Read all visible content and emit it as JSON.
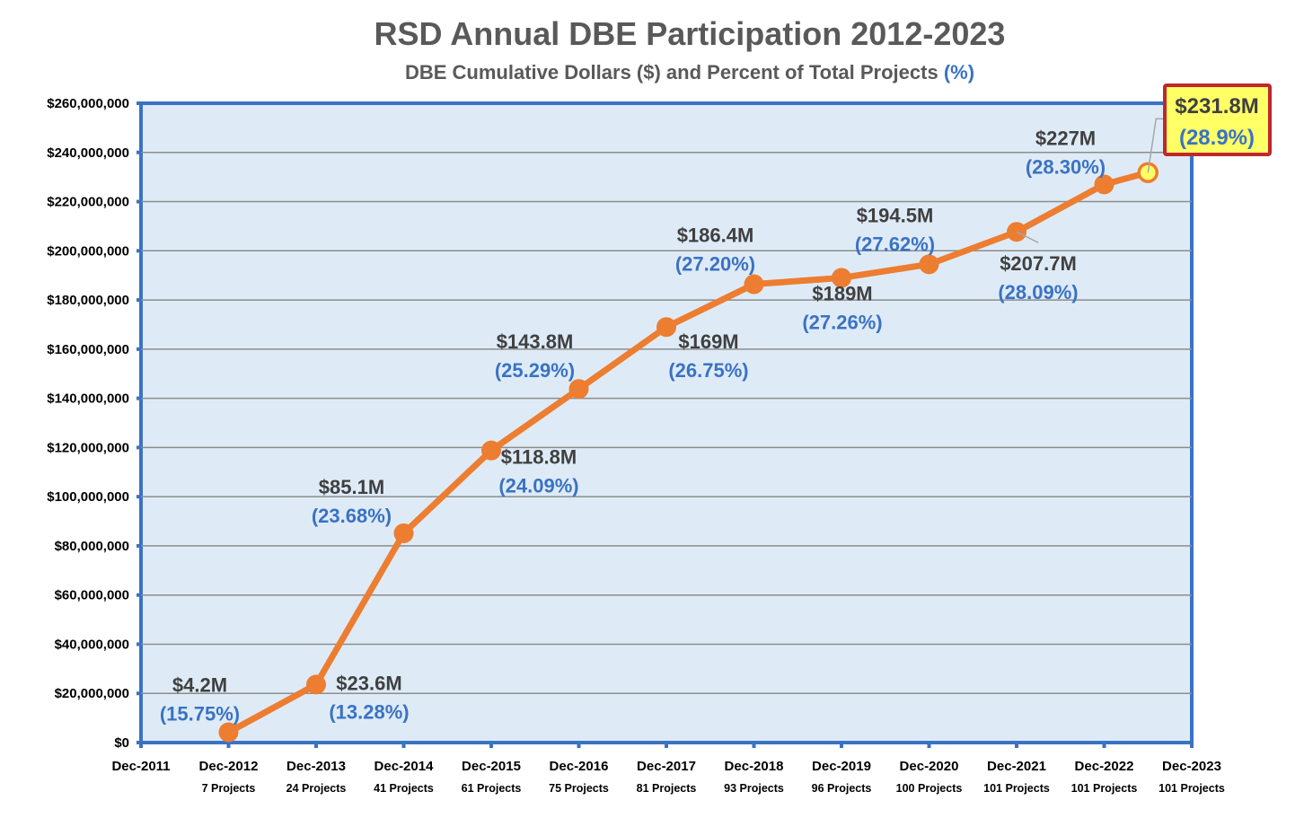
{
  "chart_data": {
    "type": "line",
    "title": "RSD Annual DBE Participation 2012-2023",
    "subtitle_main": "DBE Cumulative Dollars ($) and Percent of Total Projects ",
    "subtitle_pct": "(%)",
    "ylim": [
      0,
      260000000
    ],
    "yticks": [
      "$0",
      "$20,000,000",
      "$40,000,000",
      "$60,000,000",
      "$80,000,000",
      "$100,000,000",
      "$120,000,000",
      "$140,000,000",
      "$160,000,000",
      "$180,000,000",
      "$200,000,000",
      "$220,000,000",
      "$240,000,000",
      "$260,000,000"
    ],
    "xticks": [
      {
        "label": "Dec-2011",
        "projects": ""
      },
      {
        "label": "Dec-2012",
        "projects": "7 Projects"
      },
      {
        "label": "Dec-2013",
        "projects": "24 Projects"
      },
      {
        "label": "Dec-2014",
        "projects": "41 Projects"
      },
      {
        "label": "Dec-2015",
        "projects": "61 Projects"
      },
      {
        "label": "Dec-2016",
        "projects": "75 Projects"
      },
      {
        "label": "Dec-2017",
        "projects": "81 Projects"
      },
      {
        "label": "Dec-2018",
        "projects": "93 Projects"
      },
      {
        "label": "Dec-2019",
        "projects": "96 Projects"
      },
      {
        "label": "Dec-2020",
        "projects": "100 Projects"
      },
      {
        "label": "Dec-2021",
        "projects": "101 Projects"
      },
      {
        "label": "Dec-2022",
        "projects": "101 Projects"
      },
      {
        "label": "Dec-2023",
        "projects": "101 Projects"
      }
    ],
    "grid": true,
    "series": [
      {
        "color": "#ed7d31",
        "points": [
          {
            "value": 4200000,
            "label": "$4.2M",
            "pct": "(15.75%)"
          },
          {
            "value": 23600000,
            "label": "$23.6M",
            "pct": "(13.28%)"
          },
          {
            "value": 85100000,
            "label": "$85.1M",
            "pct": "(23.68%)"
          },
          {
            "value": 118800000,
            "label": "$118.8M",
            "pct": "(24.09%)"
          },
          {
            "value": 143800000,
            "label": "$143.8M",
            "pct": "(25.29%)"
          },
          {
            "value": 169000000,
            "label": "$169M",
            "pct": "(26.75%)"
          },
          {
            "value": 186400000,
            "label": "$186.4M",
            "pct": "(27.20%)"
          },
          {
            "value": 189000000,
            "label": "$189M",
            "pct": "(27.26%)"
          },
          {
            "value": 194500000,
            "label": "$194.5M",
            "pct": "(27.62%)"
          },
          {
            "value": 207700000,
            "label": "$207.7M",
            "pct": "(28.09%)"
          },
          {
            "value": 227000000,
            "label": "$227M",
            "pct": "(28.30%)"
          },
          {
            "value": 231800000,
            "label": "$231.8M",
            "pct": "(28.9%)",
            "highlight": true
          }
        ]
      }
    ],
    "colors": {
      "plot_bg": "#deebf7",
      "axis": "#3a72c4",
      "line": "#ed7d31",
      "highlight_fill": "#ffff66",
      "callout_border": "#c0272d",
      "pct_text": "#3a72c4"
    }
  }
}
